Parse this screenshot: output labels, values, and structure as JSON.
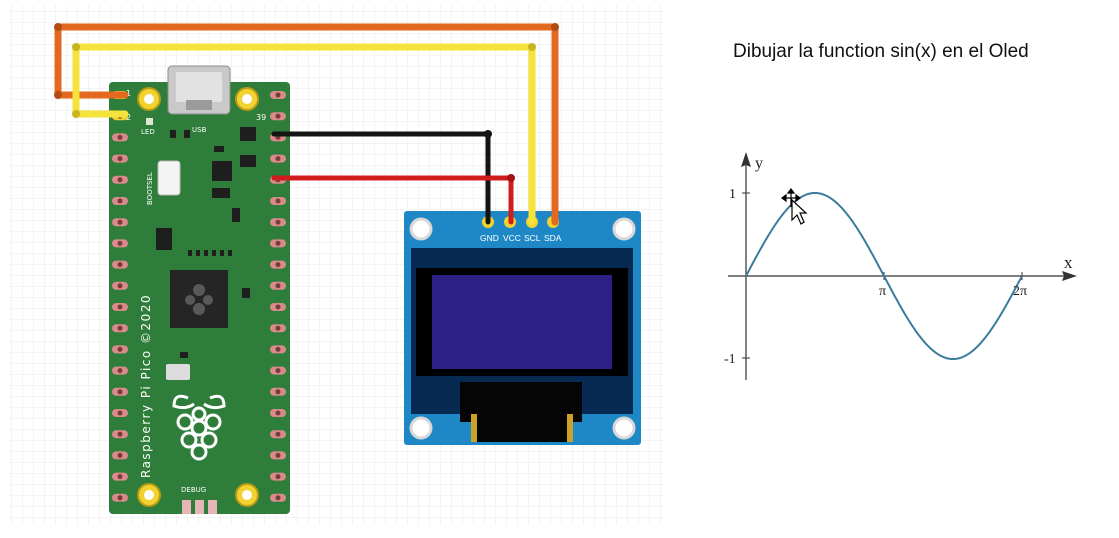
{
  "pico": {
    "pin_1": "1",
    "pin_2": "2",
    "pin_39": "39",
    "led": "LED",
    "usb": "USB",
    "bootsel": "BOOTSEL",
    "brand": "Raspberry Pi Pico ©2020",
    "debug": "DEBUG"
  },
  "oled": {
    "pins": [
      "GND",
      "VCC",
      "SCL",
      "SDA"
    ]
  },
  "graph": {
    "title": "Dibujar la function sin(x) en el Oled",
    "x_label": "x",
    "y_label": "y",
    "y_tick_top": "1",
    "y_tick_bottom": "-1",
    "x_tick_pi": "π",
    "x_tick_2pi": "2π"
  },
  "colors": {
    "board": "#2e7d3a",
    "oled_pcb": "#1e88c6",
    "screen": "#2c1f86",
    "wire_orange": "#e2691f",
    "wire_yellow": "#f5e23a",
    "wire_black": "#141414",
    "wire_red": "#d01c1c",
    "curve": "#3b7c9c"
  }
}
